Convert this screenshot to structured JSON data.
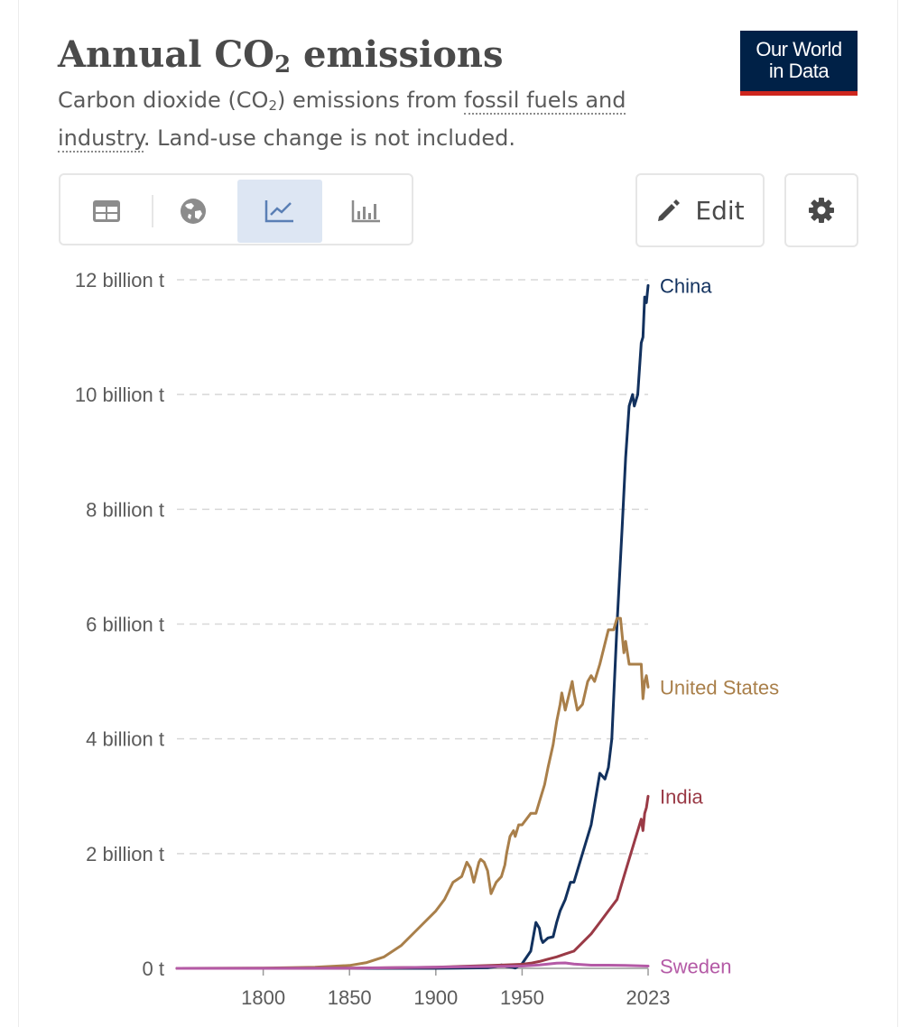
{
  "header": {
    "title_main": "Annual CO",
    "title_sub": "2",
    "title_rest": " emissions",
    "subtitle_a": "Carbon dioxide (CO",
    "subtitle_sub": "2",
    "subtitle_b": ") emissions from ",
    "subtitle_link": "fossil fuels and industry",
    "subtitle_c": ". Land-use change is not included."
  },
  "logo": {
    "line1": "Our World",
    "line2": "in Data",
    "colors": {
      "background": "#002147",
      "underline": "#ce261e"
    }
  },
  "toolbar": {
    "tabs": [
      {
        "icon": "table-icon",
        "active": false
      },
      {
        "icon": "globe-icon",
        "active": false
      },
      {
        "icon": "line-chart-icon",
        "active": true
      },
      {
        "icon": "bar-chart-icon",
        "active": false
      }
    ],
    "edit_label": "Edit",
    "edit_icon": "pencil-icon",
    "settings_icon": "gear-icon"
  },
  "chart_data": {
    "type": "line",
    "title": "Annual CO₂ emissions",
    "ylim": [
      0,
      12000000000
    ],
    "xlim": [
      1750,
      2023
    ],
    "y_ticks": [
      {
        "value": 0,
        "label": "0 t"
      },
      {
        "value": 2000000000,
        "label": "2 billion t"
      },
      {
        "value": 4000000000,
        "label": "4 billion t"
      },
      {
        "value": 6000000000,
        "label": "6 billion t"
      },
      {
        "value": 8000000000,
        "label": "8 billion t"
      },
      {
        "value": 10000000000,
        "label": "10 billion t"
      },
      {
        "value": 12000000000,
        "label": "12 billion t"
      }
    ],
    "x_ticks": [
      {
        "value": 1800,
        "label": "1800"
      },
      {
        "value": 1850,
        "label": "1850"
      },
      {
        "value": 1900,
        "label": "1900"
      },
      {
        "value": 1950,
        "label": "1950"
      },
      {
        "value": 2023,
        "label": "2023"
      }
    ],
    "grid": true,
    "series": [
      {
        "name": "China",
        "color": "#12315e",
        "x": [
          1750,
          1900,
          1930,
          1935,
          1938,
          1941,
          1944,
          1946,
          1950,
          1955,
          1958,
          1960,
          1961,
          1962,
          1965,
          1968,
          1970,
          1972,
          1975,
          1978,
          1980,
          1985,
          1990,
          1995,
          1998,
          2000,
          2002,
          2005,
          2008,
          2010,
          2012,
          2014,
          2015,
          2017,
          2019,
          2020,
          2021,
          2022,
          2023
        ],
        "y": [
          0,
          0,
          10000000,
          30000000,
          60000000,
          30000000,
          20000000,
          5000000,
          80000000,
          300000000,
          800000000,
          700000000,
          520000000,
          450000000,
          530000000,
          550000000,
          800000000,
          1000000000,
          1200000000,
          1500000000,
          1500000000,
          2000000000,
          2500000000,
          3400000000,
          3300000000,
          3500000000,
          4000000000,
          6000000000,
          7700000000,
          8900000000,
          9800000000,
          10000000000,
          9800000000,
          10000000000,
          10900000000,
          11000000000,
          11700000000,
          11600000000,
          11900000000
        ]
      },
      {
        "name": "United States",
        "color": "#a97f4a",
        "x": [
          1750,
          1800,
          1830,
          1850,
          1860,
          1870,
          1880,
          1890,
          1900,
          1905,
          1910,
          1915,
          1918,
          1920,
          1922,
          1925,
          1926,
          1928,
          1930,
          1932,
          1935,
          1938,
          1940,
          1941,
          1943,
          1945,
          1946,
          1948,
          1950,
          1955,
          1958,
          1960,
          1963,
          1965,
          1968,
          1970,
          1972,
          1973,
          1975,
          1979,
          1980,
          1982,
          1985,
          1988,
          1990,
          1992,
          1995,
          2000,
          2003,
          2005,
          2007,
          2009,
          2010,
          2012,
          2015,
          2019,
          2020,
          2021,
          2022,
          2023
        ],
        "y": [
          0,
          5000000,
          20000000,
          50000000,
          100000000,
          200000000,
          400000000,
          700000000,
          1000000000,
          1200000000,
          1500000000,
          1600000000,
          1850000000,
          1750000000,
          1500000000,
          1850000000,
          1900000000,
          1850000000,
          1700000000,
          1300000000,
          1500000000,
          1600000000,
          1800000000,
          2000000000,
          2300000000,
          2400000000,
          2300000000,
          2500000000,
          2500000000,
          2700000000,
          2700000000,
          2900000000,
          3200000000,
          3500000000,
          3900000000,
          4300000000,
          4600000000,
          4800000000,
          4500000000,
          5000000000,
          4800000000,
          4500000000,
          4600000000,
          5000000000,
          5100000000,
          5000000000,
          5300000000,
          5900000000,
          5900000000,
          6100000000,
          6100000000,
          5500000000,
          5700000000,
          5300000000,
          5300000000,
          5300000000,
          4700000000,
          5000000000,
          5100000000,
          4900000000
        ]
      },
      {
        "name": "India",
        "color": "#9a3a46",
        "x": [
          1750,
          1850,
          1900,
          1920,
          1940,
          1950,
          1955,
          1960,
          1965,
          1970,
          1975,
          1980,
          1985,
          1990,
          1995,
          2000,
          2005,
          2010,
          2015,
          2019,
          2020,
          2021,
          2022,
          2023
        ],
        "y": [
          0,
          5000000,
          20000000,
          40000000,
          60000000,
          70000000,
          90000000,
          120000000,
          160000000,
          200000000,
          250000000,
          300000000,
          450000000,
          600000000,
          800000000,
          1000000000,
          1200000000,
          1700000000,
          2200000000,
          2600000000,
          2400000000,
          2700000000,
          2800000000,
          3000000000
        ]
      },
      {
        "name": "Sweden",
        "color": "#b45aa6",
        "x": [
          1750,
          1850,
          1900,
          1925,
          1950,
          1960,
          1970,
          1975,
          1980,
          1990,
          2000,
          2010,
          2023
        ],
        "y": [
          0,
          2000000,
          20000000,
          30000000,
          40000000,
          60000000,
          90000000,
          95000000,
          75000000,
          55000000,
          55000000,
          50000000,
          40000000
        ]
      }
    ]
  }
}
